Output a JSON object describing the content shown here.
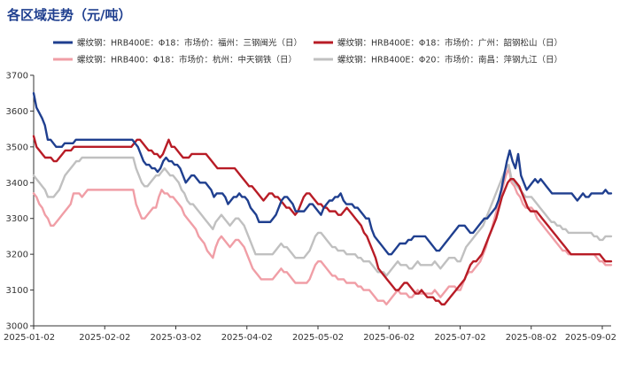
{
  "chart_data": {
    "type": "line",
    "title": "各区域走势（元/吨）",
    "xlabel": "",
    "ylabel": "",
    "ylim": [
      3000,
      3700
    ],
    "y_ticks": [
      3000,
      3100,
      3200,
      3300,
      3400,
      3500,
      3600,
      3700
    ],
    "x_ticks": [
      "2025-01-02",
      "2025-02-02",
      "2025-03-02",
      "2025-04-02",
      "2025-05-02",
      "2025-06-02",
      "2025-07-02",
      "2025-08-02",
      "2025-09-02"
    ],
    "grid": false,
    "legend_position": "top",
    "series": [
      {
        "name": "螺纹钢：HRB400E：Φ18：市场价：福州：三钢闽光（日）",
        "color": "#1f3f8f",
        "width": 2.4,
        "values": [
          3650,
          3610,
          3595,
          3580,
          3560,
          3520,
          3520,
          3510,
          3500,
          3500,
          3500,
          3510,
          3510,
          3510,
          3510,
          3520,
          3520,
          3520,
          3520,
          3520,
          3520,
          3520,
          3520,
          3520,
          3520,
          3520,
          3520,
          3520,
          3520,
          3520,
          3520,
          3520,
          3520,
          3520,
          3520,
          3520,
          3510,
          3500,
          3480,
          3460,
          3450,
          3450,
          3440,
          3440,
          3430,
          3440,
          3460,
          3470,
          3460,
          3460,
          3450,
          3450,
          3440,
          3420,
          3400,
          3410,
          3420,
          3420,
          3410,
          3400,
          3400,
          3400,
          3390,
          3380,
          3360,
          3370,
          3370,
          3370,
          3360,
          3340,
          3350,
          3360,
          3360,
          3370,
          3360,
          3360,
          3350,
          3330,
          3320,
          3310,
          3290,
          3290,
          3290,
          3290,
          3290,
          3300,
          3310,
          3330,
          3350,
          3360,
          3360,
          3350,
          3340,
          3320,
          3320,
          3320,
          3320,
          3330,
          3340,
          3340,
          3330,
          3320,
          3310,
          3330,
          3340,
          3350,
          3350,
          3360,
          3360,
          3370,
          3350,
          3340,
          3340,
          3340,
          3330,
          3330,
          3320,
          3310,
          3300,
          3300,
          3270,
          3250,
          3240,
          3230,
          3220,
          3210,
          3200,
          3200,
          3210,
          3220,
          3230,
          3230,
          3230,
          3240,
          3240,
          3250,
          3250,
          3250,
          3250,
          3250,
          3240,
          3230,
          3220,
          3210,
          3210,
          3220,
          3230,
          3240,
          3250,
          3260,
          3270,
          3280,
          3280,
          3280,
          3270,
          3260,
          3260,
          3270,
          3280,
          3290,
          3300,
          3300,
          3310,
          3320,
          3330,
          3350,
          3380,
          3420,
          3460,
          3490,
          3460,
          3440,
          3480,
          3420,
          3400,
          3380,
          3390,
          3400,
          3410,
          3400,
          3410,
          3400,
          3390,
          3380,
          3370,
          3370,
          3370,
          3370,
          3370,
          3370,
          3370,
          3370,
          3360,
          3350,
          3360,
          3370,
          3360,
          3360,
          3370,
          3370,
          3370,
          3370,
          3370,
          3380,
          3370,
          3370
        ]
      },
      {
        "name": "螺纹钢：HRB400E：Φ18：市场价：广州：韶钢松山（日）",
        "color": "#b81c26",
        "width": 2.4,
        "values": [
          3530,
          3500,
          3490,
          3480,
          3470,
          3470,
          3470,
          3460,
          3460,
          3470,
          3480,
          3490,
          3490,
          3490,
          3500,
          3500,
          3500,
          3500,
          3500,
          3500,
          3500,
          3500,
          3500,
          3500,
          3500,
          3500,
          3500,
          3500,
          3500,
          3500,
          3500,
          3500,
          3500,
          3500,
          3500,
          3510,
          3520,
          3520,
          3510,
          3500,
          3490,
          3490,
          3480,
          3480,
          3470,
          3480,
          3500,
          3520,
          3500,
          3500,
          3490,
          3480,
          3470,
          3470,
          3470,
          3480,
          3480,
          3480,
          3480,
          3480,
          3480,
          3470,
          3460,
          3450,
          3440,
          3440,
          3440,
          3440,
          3440,
          3440,
          3440,
          3430,
          3420,
          3410,
          3400,
          3390,
          3390,
          3380,
          3370,
          3360,
          3350,
          3360,
          3370,
          3370,
          3360,
          3360,
          3350,
          3340,
          3330,
          3330,
          3320,
          3310,
          3320,
          3340,
          3360,
          3370,
          3370,
          3360,
          3350,
          3340,
          3340,
          3330,
          3330,
          3320,
          3320,
          3320,
          3310,
          3310,
          3320,
          3330,
          3320,
          3310,
          3300,
          3290,
          3280,
          3260,
          3250,
          3230,
          3210,
          3190,
          3160,
          3150,
          3140,
          3130,
          3120,
          3110,
          3100,
          3100,
          3110,
          3120,
          3120,
          3110,
          3100,
          3090,
          3090,
          3100,
          3090,
          3080,
          3080,
          3080,
          3070,
          3070,
          3060,
          3060,
          3070,
          3080,
          3090,
          3100,
          3110,
          3120,
          3130,
          3150,
          3170,
          3180,
          3180,
          3190,
          3200,
          3220,
          3240,
          3260,
          3280,
          3300,
          3330,
          3360,
          3380,
          3400,
          3410,
          3410,
          3400,
          3390,
          3370,
          3350,
          3330,
          3320,
          3320,
          3320,
          3310,
          3300,
          3290,
          3280,
          3270,
          3260,
          3250,
          3240,
          3230,
          3220,
          3210,
          3200,
          3200,
          3200,
          3200,
          3200,
          3200,
          3200,
          3200,
          3200,
          3200,
          3200,
          3190,
          3180,
          3180,
          3180
        ]
      },
      {
        "name": "螺纹钢：HRB400：Φ18：市场价：杭州：中天钢铁（日）",
        "color": "#f09ea6",
        "width": 2.4,
        "values": [
          3370,
          3360,
          3340,
          3330,
          3310,
          3300,
          3280,
          3280,
          3290,
          3300,
          3310,
          3320,
          3330,
          3340,
          3370,
          3370,
          3370,
          3360,
          3370,
          3380,
          3380,
          3380,
          3380,
          3380,
          3380,
          3380,
          3380,
          3380,
          3380,
          3380,
          3380,
          3380,
          3380,
          3380,
          3380,
          3380,
          3340,
          3320,
          3300,
          3300,
          3310,
          3320,
          3330,
          3330,
          3360,
          3380,
          3370,
          3370,
          3360,
          3360,
          3350,
          3340,
          3330,
          3310,
          3300,
          3290,
          3280,
          3270,
          3250,
          3240,
          3230,
          3210,
          3200,
          3190,
          3220,
          3240,
          3250,
          3240,
          3230,
          3220,
          3230,
          3240,
          3240,
          3230,
          3220,
          3200,
          3180,
          3160,
          3150,
          3140,
          3130,
          3130,
          3130,
          3130,
          3130,
          3140,
          3150,
          3160,
          3150,
          3150,
          3140,
          3130,
          3120,
          3120,
          3120,
          3120,
          3120,
          3130,
          3150,
          3170,
          3180,
          3180,
          3170,
          3160,
          3150,
          3140,
          3140,
          3130,
          3130,
          3130,
          3120,
          3120,
          3120,
          3120,
          3110,
          3110,
          3100,
          3100,
          3100,
          3090,
          3080,
          3070,
          3070,
          3070,
          3060,
          3070,
          3080,
          3090,
          3100,
          3090,
          3090,
          3090,
          3080,
          3080,
          3090,
          3100,
          3090,
          3090,
          3090,
          3090,
          3090,
          3100,
          3090,
          3080,
          3090,
          3100,
          3110,
          3110,
          3110,
          3100,
          3100,
          3120,
          3140,
          3150,
          3150,
          3160,
          3170,
          3180,
          3200,
          3220,
          3250,
          3270,
          3300,
          3330,
          3360,
          3390,
          3420,
          3440,
          3400,
          3390,
          3370,
          3360,
          3340,
          3330,
          3330,
          3330,
          3320,
          3300,
          3290,
          3280,
          3270,
          3260,
          3250,
          3240,
          3230,
          3220,
          3210,
          3210,
          3200,
          3200,
          3200,
          3200,
          3200,
          3200,
          3200,
          3200,
          3200,
          3200,
          3190,
          3180,
          3180,
          3170,
          3170,
          3170
        ]
      },
      {
        "name": "螺纹钢：HRB400E：Φ20：市场价：南昌：萍钢九江（日）",
        "color": "#c0c0c0",
        "width": 2.4,
        "values": [
          3420,
          3410,
          3400,
          3390,
          3380,
          3360,
          3360,
          3360,
          3370,
          3380,
          3400,
          3420,
          3430,
          3440,
          3450,
          3460,
          3460,
          3470,
          3470,
          3470,
          3470,
          3470,
          3470,
          3470,
          3470,
          3470,
          3470,
          3470,
          3470,
          3470,
          3470,
          3470,
          3470,
          3470,
          3470,
          3470,
          3440,
          3420,
          3400,
          3390,
          3390,
          3400,
          3410,
          3420,
          3420,
          3430,
          3440,
          3430,
          3420,
          3420,
          3410,
          3400,
          3380,
          3370,
          3350,
          3340,
          3340,
          3330,
          3320,
          3310,
          3300,
          3290,
          3280,
          3270,
          3290,
          3300,
          3310,
          3300,
          3290,
          3280,
          3290,
          3300,
          3300,
          3290,
          3280,
          3260,
          3240,
          3220,
          3200,
          3200,
          3200,
          3200,
          3200,
          3200,
          3200,
          3210,
          3220,
          3230,
          3220,
          3220,
          3210,
          3200,
          3190,
          3190,
          3190,
          3190,
          3200,
          3210,
          3230,
          3250,
          3260,
          3260,
          3250,
          3240,
          3230,
          3220,
          3220,
          3210,
          3210,
          3210,
          3200,
          3200,
          3200,
          3200,
          3190,
          3190,
          3180,
          3180,
          3180,
          3170,
          3160,
          3150,
          3150,
          3150,
          3140,
          3150,
          3160,
          3170,
          3180,
          3170,
          3170,
          3170,
          3160,
          3160,
          3170,
          3180,
          3170,
          3170,
          3170,
          3170,
          3170,
          3180,
          3170,
          3160,
          3170,
          3180,
          3190,
          3190,
          3190,
          3180,
          3180,
          3200,
          3220,
          3230,
          3240,
          3250,
          3260,
          3270,
          3280,
          3300,
          3320,
          3340,
          3360,
          3380,
          3400,
          3420,
          3440,
          3450,
          3410,
          3400,
          3390,
          3380,
          3370,
          3360,
          3360,
          3360,
          3350,
          3340,
          3330,
          3320,
          3310,
          3300,
          3290,
          3290,
          3280,
          3280,
          3270,
          3270,
          3260,
          3260,
          3260,
          3260,
          3260,
          3260,
          3260,
          3260,
          3260,
          3250,
          3250,
          3240,
          3240,
          3250,
          3250,
          3250
        ]
      }
    ]
  }
}
